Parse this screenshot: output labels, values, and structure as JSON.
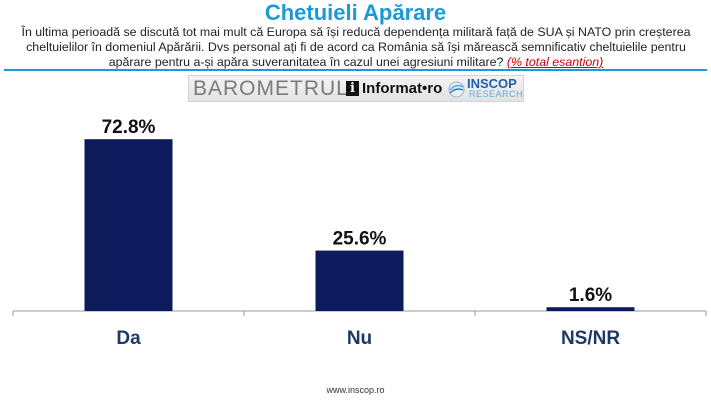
{
  "header": {
    "title": "Chetuieli Apărare",
    "question": "În ultima perioadă se discută tot mai mult că Europa să își reducă dependența militară față de SUA și NATO prin creșterea cheltuielilor în domeniul Apărării. Dvs personal ați fi de acord ca România să își mărească semnificativ cheltuielile pentru apărare pentru a-și apăra suveranitatea în cazul unei agresiuni militare?",
    "note": "(% total esantion)"
  },
  "banner": {
    "barometer": "BAROMETRUL",
    "info_badge": "i",
    "info_name": "Informat•ro",
    "inscop_name": "INSCOP",
    "inscop_sub": "RESEARCH"
  },
  "colors": {
    "accent": "#1a9ad6",
    "bar": "#0d1a5c",
    "note": "#cc0000"
  },
  "chart_data": {
    "type": "bar",
    "categories": [
      "Da",
      "Nu",
      "NS/NR"
    ],
    "values": [
      72.8,
      25.6,
      1.6
    ],
    "value_labels": [
      "72.8%",
      "25.6%",
      "1.6%"
    ],
    "unit": "%",
    "ylim": [
      0,
      100
    ],
    "grid": false,
    "legend": "none"
  },
  "footer": {
    "url": "www.inscop.ro"
  }
}
